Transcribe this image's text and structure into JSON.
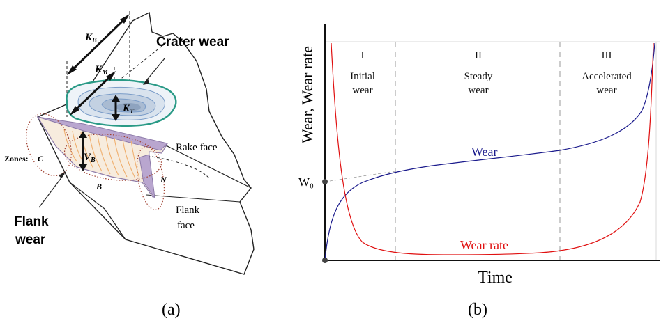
{
  "panel_a": {
    "caption": "(a)",
    "labels": {
      "kb": "K",
      "kb_sub": "B",
      "km": "K",
      "km_sub": "M",
      "kt": "K",
      "kt_sub": "T",
      "vb": "V",
      "vb_sub": "B",
      "crater_wear": "Crater wear",
      "rake_face": "Rake face",
      "flank_face_1": "Flank",
      "flank_face_2": "face",
      "flank_wear_1": "Flank",
      "flank_wear_2": "wear",
      "zones": "Zones:",
      "zone_c": "C",
      "zone_b": "B",
      "zone_n": "N"
    },
    "colors": {
      "crater_outline": "#2a9a86",
      "crater_fill": "#9fb3cc",
      "flank_fill": "#b9a6cf",
      "flank_stripes": "#f0b070",
      "zone_dots": "#a04030"
    }
  },
  "panel_b": {
    "caption": "(b)",
    "ylabel": "Wear,  Wear rate",
    "xlabel": "Time",
    "w0_label": "W₀",
    "zones": [
      {
        "numeral": "I",
        "line1": "Initial",
        "line2": "wear"
      },
      {
        "numeral": "II",
        "line1": "Steady",
        "line2": "wear"
      },
      {
        "numeral": "III",
        "line1": "Accelerated",
        "line2": "wear"
      }
    ],
    "curve_labels": {
      "wear": "Wear",
      "wear_rate": "Wear rate"
    },
    "colors": {
      "wear": "#1a1a8c",
      "wear_rate": "#e01010",
      "dividers": "#999999"
    }
  }
}
